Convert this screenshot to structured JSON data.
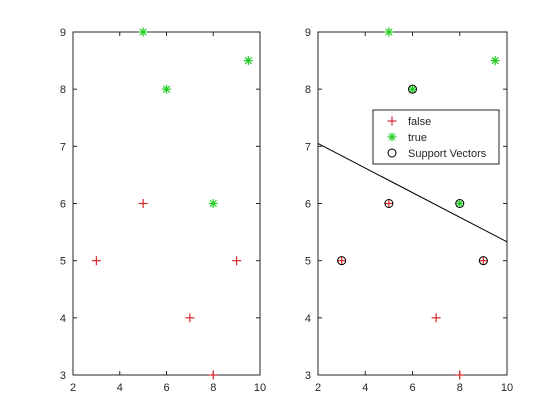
{
  "chart_data": [
    {
      "type": "scatter",
      "xlim": [
        2,
        10
      ],
      "ylim": [
        3,
        9
      ],
      "xticks": [
        2,
        4,
        6,
        8,
        10
      ],
      "yticks": [
        3,
        4,
        5,
        6,
        7,
        8,
        9
      ],
      "grid": false,
      "series": [
        {
          "marker": "plus",
          "color": "#d62728",
          "points": [
            [
              3,
              5
            ],
            [
              5,
              6
            ],
            [
              7,
              4
            ],
            [
              8,
              3
            ],
            [
              9,
              5
            ]
          ]
        },
        {
          "marker": "asterisk",
          "color": "#22cc22",
          "points": [
            [
              5,
              9
            ],
            [
              6,
              8
            ],
            [
              8,
              6
            ],
            [
              9.5,
              8.5
            ]
          ]
        }
      ]
    },
    {
      "type": "scatter",
      "xlim": [
        2,
        10
      ],
      "ylim": [
        3,
        9
      ],
      "xticks": [
        2,
        4,
        6,
        8,
        10
      ],
      "yticks": [
        3,
        4,
        5,
        6,
        7,
        8,
        9
      ],
      "grid": false,
      "legend_position": "upper-right",
      "series": [
        {
          "name": "false",
          "marker": "plus",
          "color": "#d62728",
          "points": [
            [
              3,
              5
            ],
            [
              5,
              6
            ],
            [
              7,
              4
            ],
            [
              8,
              3
            ],
            [
              9,
              5
            ]
          ]
        },
        {
          "name": "true",
          "marker": "asterisk",
          "color": "#22cc22",
          "points": [
            [
              5,
              9
            ],
            [
              6,
              8
            ],
            [
              8,
              6
            ],
            [
              9.5,
              8.5
            ]
          ]
        },
        {
          "name": "Support Vectors",
          "marker": "circle",
          "color": "#000000",
          "points": [
            [
              3,
              5
            ],
            [
              5,
              6
            ],
            [
              6,
              8
            ],
            [
              8,
              6
            ],
            [
              9,
              5
            ]
          ]
        }
      ],
      "decision_boundary": {
        "color": "#000000",
        "points": [
          [
            2,
            7.05
          ],
          [
            10,
            5.33
          ]
        ]
      }
    }
  ]
}
